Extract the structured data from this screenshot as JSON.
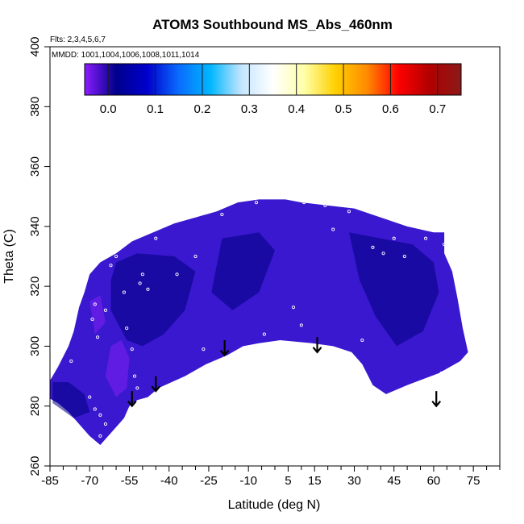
{
  "chart_data": {
    "type": "heatmap",
    "title": "ATOM3 Southbound MS_Abs_460nm",
    "flights_note": "Flts: 2,3,4,5,6,7",
    "dates_note": "MMDD: 1001,1004,1006,1008,1011,1014",
    "xlabel": "Latitude (deg N)",
    "ylabel": "Theta (C)",
    "xlim": [
      -85,
      85
    ],
    "ylim": [
      260,
      400
    ],
    "xticks": [
      -85,
      -70,
      -55,
      -40,
      -25,
      -10,
      5,
      15,
      30,
      45,
      60,
      75
    ],
    "yticks": [
      260,
      280,
      300,
      320,
      340,
      360,
      380,
      400
    ],
    "colorbar": {
      "range": [
        -0.05,
        0.75
      ],
      "ticks": [
        0.0,
        0.1,
        0.2,
        0.3,
        0.4,
        0.5,
        0.6,
        0.7
      ],
      "colors": [
        "#8b1cff",
        "#00008b",
        "#0000cd",
        "#0a6cff",
        "#00b6ff",
        "#c4e6ff",
        "#ffffff",
        "#ffffa8",
        "#ffd000",
        "#ff8a00",
        "#ff0000",
        "#b10000",
        "#8b1a1a"
      ]
    },
    "field_colors": {
      "low": "#6a1ee6",
      "mid": "#3a18d0",
      "high": "#000080"
    },
    "region_boundary": [
      [
        -86,
        287
      ],
      [
        -82,
        293
      ],
      [
        -78,
        300
      ],
      [
        -76,
        305
      ],
      [
        -74,
        313
      ],
      [
        -72,
        318
      ],
      [
        -70,
        324
      ],
      [
        -66,
        328
      ],
      [
        -60,
        331
      ],
      [
        -54,
        335
      ],
      [
        -46,
        338
      ],
      [
        -38,
        341
      ],
      [
        -30,
        343
      ],
      [
        -22,
        345
      ],
      [
        -14,
        348
      ],
      [
        -6,
        349
      ],
      [
        4,
        349
      ],
      [
        10,
        348
      ],
      [
        20,
        347
      ],
      [
        30,
        346
      ],
      [
        40,
        343
      ],
      [
        50,
        340
      ],
      [
        60,
        338
      ],
      [
        64,
        338
      ],
      [
        64,
        331
      ],
      [
        67,
        325
      ],
      [
        69,
        316
      ],
      [
        71,
        306
      ],
      [
        73,
        298
      ],
      [
        70,
        295
      ],
      [
        62,
        291
      ],
      [
        50,
        287
      ],
      [
        42,
        284
      ],
      [
        37,
        287
      ],
      [
        33,
        294
      ],
      [
        29,
        298
      ],
      [
        22,
        300
      ],
      [
        14,
        301
      ],
      [
        2,
        302
      ],
      [
        -6,
        301
      ],
      [
        -12,
        300
      ],
      [
        -18,
        297
      ],
      [
        -26,
        294
      ],
      [
        -34,
        290
      ],
      [
        -44,
        286
      ],
      [
        -48,
        283
      ],
      [
        -52,
        282
      ],
      [
        -55,
        280
      ],
      [
        -57,
        276
      ],
      [
        -60,
        273
      ],
      [
        -63,
        270
      ],
      [
        -66,
        267
      ],
      [
        -70,
        270
      ],
      [
        -74,
        274
      ],
      [
        -78,
        278
      ],
      [
        -82,
        281
      ],
      [
        -86,
        283
      ]
    ],
    "dark_patches": [
      [
        [
          -60,
          328
        ],
        [
          -52,
          331
        ],
        [
          -38,
          330
        ],
        [
          -30,
          325
        ],
        [
          -34,
          312
        ],
        [
          -42,
          304
        ],
        [
          -50,
          300
        ],
        [
          -56,
          302
        ],
        [
          -62,
          312
        ],
        [
          -62,
          322
        ]
      ],
      [
        [
          -20,
          336
        ],
        [
          -6,
          338
        ],
        [
          0,
          332
        ],
        [
          -6,
          318
        ],
        [
          -16,
          312
        ],
        [
          -24,
          318
        ]
      ],
      [
        [
          28,
          338
        ],
        [
          40,
          336
        ],
        [
          52,
          334
        ],
        [
          60,
          328
        ],
        [
          62,
          318
        ],
        [
          56,
          305
        ],
        [
          46,
          300
        ],
        [
          38,
          310
        ],
        [
          32,
          322
        ]
      ],
      [
        [
          -84,
          288
        ],
        [
          -78,
          288
        ],
        [
          -72,
          284
        ],
        [
          -70,
          278
        ],
        [
          -76,
          276
        ],
        [
          -84,
          281
        ]
      ]
    ],
    "light_patches": [
      [
        [
          -62,
          300
        ],
        [
          -58,
          302
        ],
        [
          -55,
          296
        ],
        [
          -56,
          286
        ],
        [
          -60,
          283
        ],
        [
          -64,
          290
        ]
      ],
      [
        [
          -70,
          315
        ],
        [
          -66,
          317
        ],
        [
          -64,
          308
        ],
        [
          -68,
          304
        ]
      ]
    ],
    "observation_points": [
      [
        -77,
        295
      ],
      [
        -69,
        309
      ],
      [
        -68,
        314
      ],
      [
        -67,
        303
      ],
      [
        -64,
        312
      ],
      [
        -62,
        327
      ],
      [
        -60,
        330
      ],
      [
        -57,
        318
      ],
      [
        -56,
        306
      ],
      [
        -54,
        299
      ],
      [
        -53,
        290
      ],
      [
        -52,
        286
      ],
      [
        -51,
        321
      ],
      [
        -50,
        324
      ],
      [
        -48,
        319
      ],
      [
        -47,
        281
      ],
      [
        -45,
        336
      ],
      [
        -37,
        324
      ],
      [
        -30,
        330
      ],
      [
        -27,
        299
      ],
      [
        -20,
        344
      ],
      [
        -7,
        348
      ],
      [
        -4,
        304
      ],
      [
        2,
        300
      ],
      [
        7,
        313
      ],
      [
        10,
        307
      ],
      [
        11,
        348
      ],
      [
        19,
        347
      ],
      [
        22,
        339
      ],
      [
        28,
        345
      ],
      [
        33,
        302
      ],
      [
        37,
        333
      ],
      [
        41,
        331
      ],
      [
        45,
        336
      ],
      [
        49,
        330
      ],
      [
        57,
        336
      ],
      [
        63,
        291
      ],
      [
        64,
        334
      ],
      [
        -70,
        283
      ],
      [
        -68,
        279
      ],
      [
        -66,
        277
      ],
      [
        -64,
        274
      ],
      [
        -66,
        270
      ]
    ],
    "arrows": [
      {
        "lat": -54,
        "theta": 285,
        "len": 5
      },
      {
        "lat": -45,
        "theta": 290,
        "len": 5
      },
      {
        "lat": -19,
        "theta": 302,
        "len": 5
      },
      {
        "lat": 16,
        "theta": 303,
        "len": 5
      },
      {
        "lat": 61,
        "theta": 285,
        "len": 5
      }
    ]
  }
}
